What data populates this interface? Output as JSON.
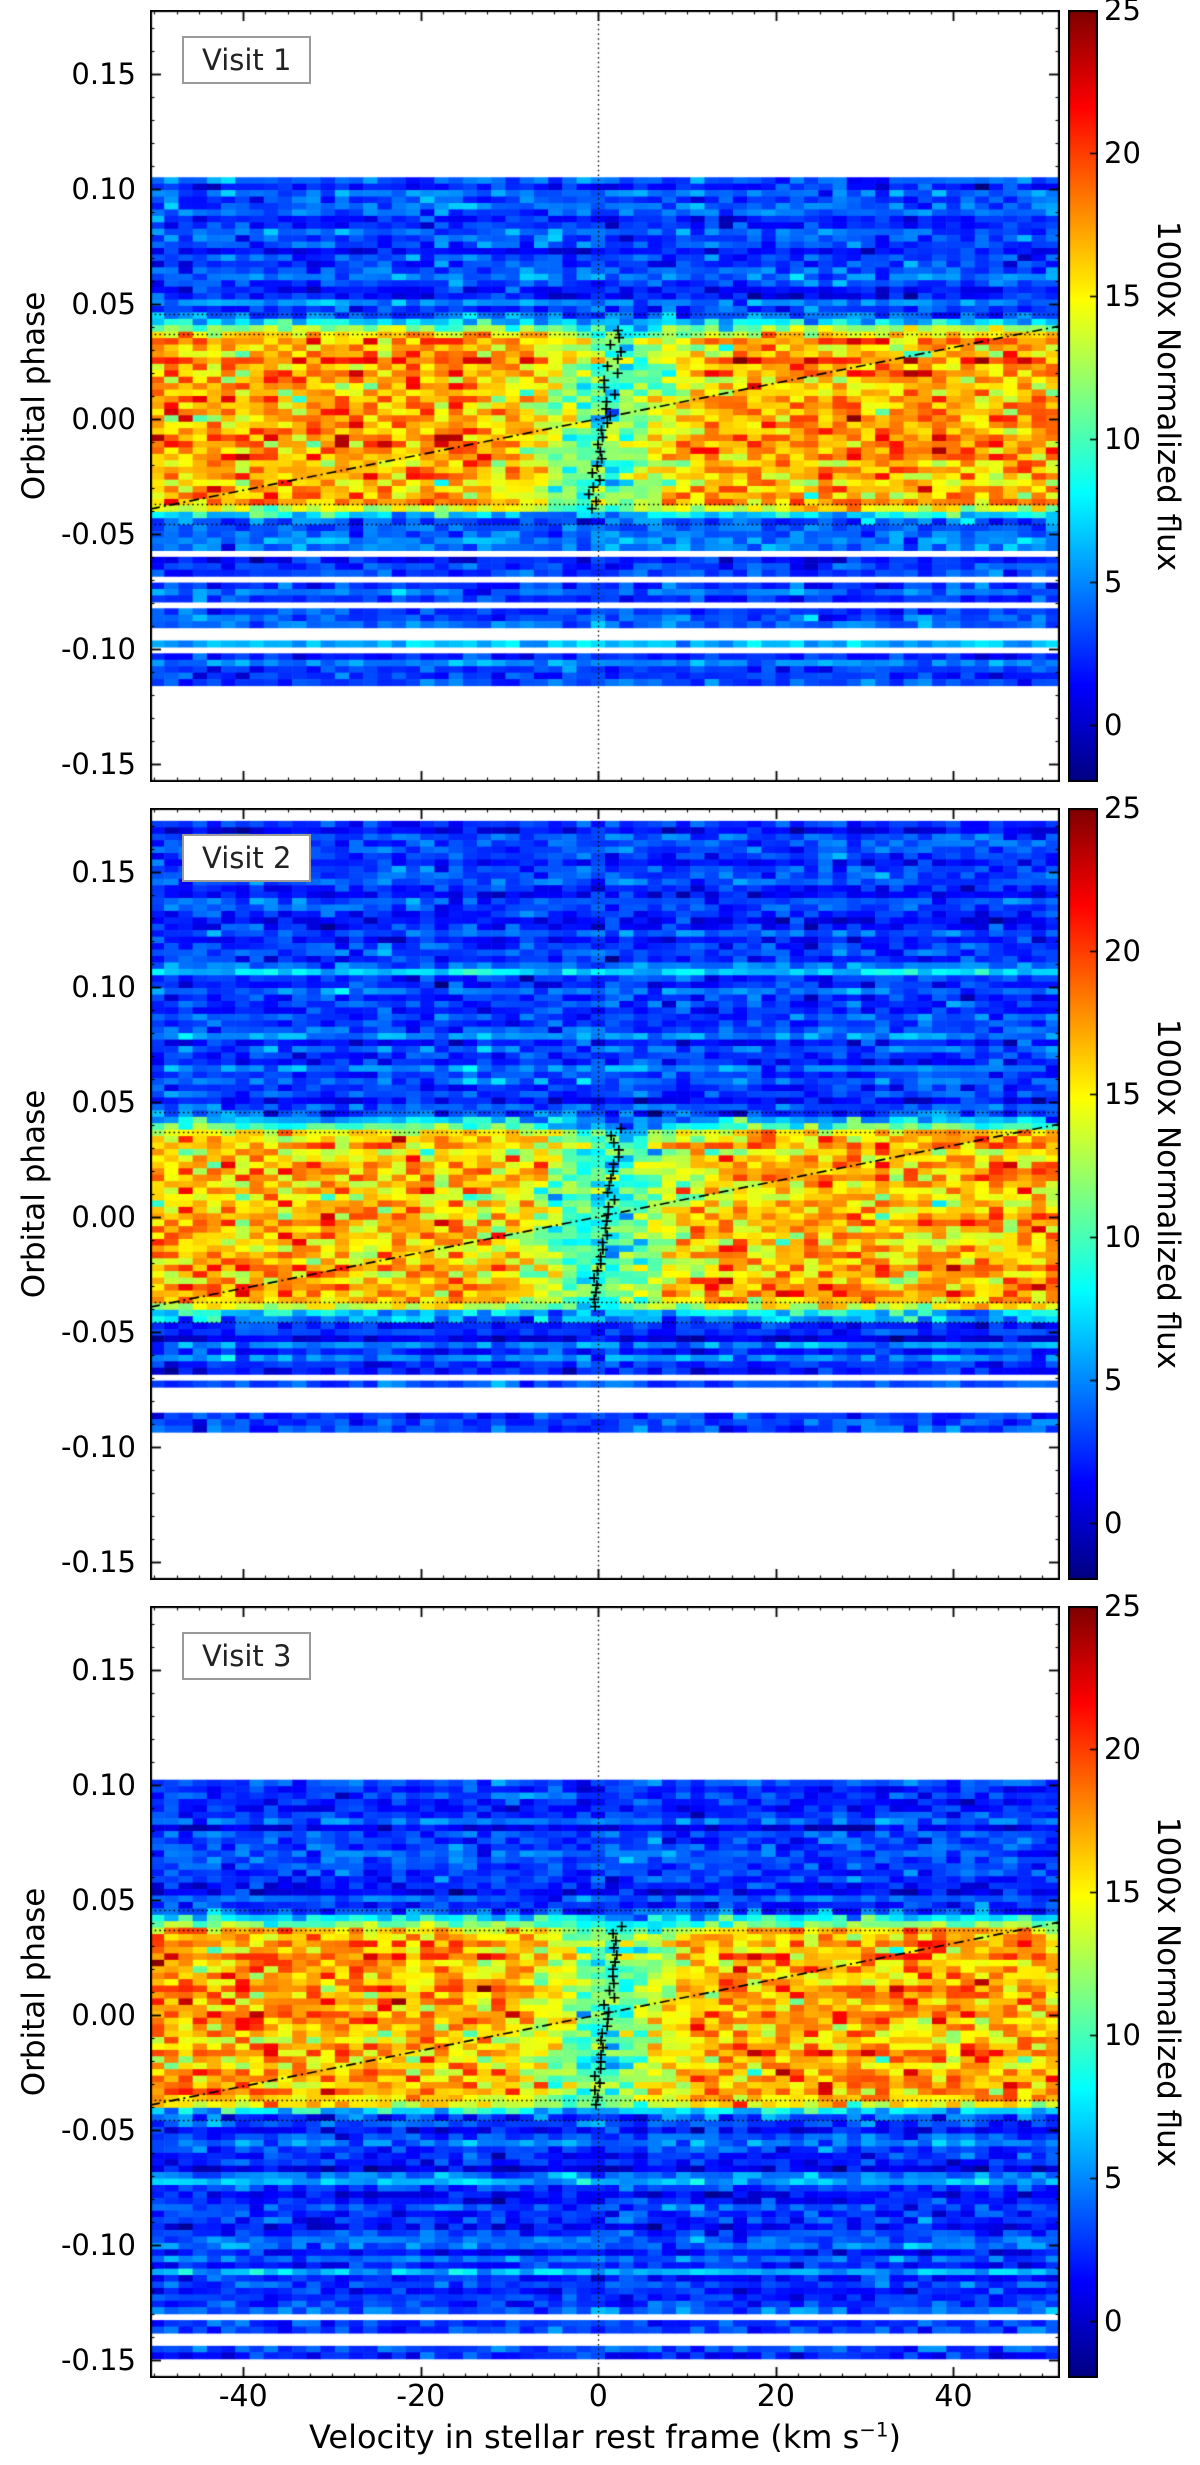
{
  "axes": {
    "xlabel": {
      "prefix": "Velocity in stellar rest frame (km s",
      "sup": "−1",
      "suffix": ")"
    },
    "ylabel": "Orbital phase",
    "x_range": [
      -50.5,
      52
    ],
    "x_tick_labels": [
      "-40",
      "-20",
      "0",
      "20",
      "40"
    ],
    "x_tick_values": [
      -40,
      -20,
      0,
      20,
      40
    ],
    "x_minor_step": 2.5,
    "y_range": [
      -0.158,
      0.178
    ],
    "y_tick_labels": [
      "0.15",
      "0.10",
      "0.05",
      "0.00",
      "-0.05",
      "-0.10",
      "-0.15"
    ],
    "y_tick_values": [
      0.15,
      0.1,
      0.05,
      0.0,
      -0.05,
      -0.1,
      -0.15
    ],
    "y_minor_step": 0.01
  },
  "colorbar": {
    "label": "1000x Normalized flux",
    "tick_labels": [
      "25",
      "20",
      "15",
      "10",
      "5",
      "0"
    ],
    "tick_values": [
      25,
      20,
      15,
      10,
      5,
      0
    ],
    "value_range": [
      -2,
      25
    ]
  },
  "chart_data": [
    {
      "type": "heatmap",
      "label": "Visit 1",
      "x_range": [
        -50.5,
        52
      ],
      "phase_coverage": [
        -0.116,
        0.106
      ],
      "gap_phases": [
        -0.059,
        -0.0695,
        -0.082,
        -0.0935,
        -0.1005
      ],
      "transit": {
        "full_phase_range": [
          -0.036,
          0.036
        ],
        "partial_phase_range": [
          -0.0455,
          0.0455
        ],
        "in_transit_flux": 17.3,
        "out_of_transit_flux": 2.8,
        "core_depth": 7.2,
        "core_sigma_kms": 5.2
      },
      "contact_phases": [
        -0.0455,
        -0.037,
        0.037,
        0.0455
      ],
      "planet_track": {
        "x": [
          -50.5,
          52
        ],
        "phase": [
          -0.0392,
          0.0405
        ]
      },
      "absorption_trace_velocity": [
        -0.8,
        2.3
      ]
    },
    {
      "type": "heatmap",
      "label": "Visit 2",
      "x_range": [
        -50.5,
        52
      ],
      "phase_coverage": [
        -0.093,
        0.172
      ],
      "gap_phases": [
        -0.0705,
        -0.0765,
        -0.0825
      ],
      "transit": {
        "full_phase_range": [
          -0.036,
          0.036
        ],
        "partial_phase_range": [
          -0.0455,
          0.0455
        ],
        "in_transit_flux": 16.8,
        "out_of_transit_flux": 2.8,
        "core_depth": 7.8,
        "core_sigma_kms": 5.5
      },
      "contact_phases": [
        -0.0455,
        -0.037,
        0.037,
        0.0455
      ],
      "planet_track": {
        "x": [
          -50.5,
          52
        ],
        "phase": [
          -0.0392,
          0.0405
        ]
      },
      "absorption_trace_velocity": [
        -0.6,
        2.4
      ]
    },
    {
      "type": "heatmap",
      "label": "Visit 3",
      "x_range": [
        -50.5,
        52
      ],
      "phase_coverage": [
        -0.149,
        0.101
      ],
      "gap_phases": [
        -0.1305,
        -0.1415
      ],
      "transit": {
        "full_phase_range": [
          -0.036,
          0.036
        ],
        "partial_phase_range": [
          -0.0455,
          0.0455
        ],
        "in_transit_flux": 17.0,
        "out_of_transit_flux": 2.8,
        "core_depth": 7.0,
        "core_sigma_kms": 5.0
      },
      "contact_phases": [
        -0.0455,
        -0.037,
        0.037,
        0.0455
      ],
      "planet_track": {
        "x": [
          -50.5,
          52
        ],
        "phase": [
          -0.0392,
          0.0405
        ]
      },
      "absorption_trace_velocity": [
        -0.5,
        2.5
      ]
    }
  ]
}
